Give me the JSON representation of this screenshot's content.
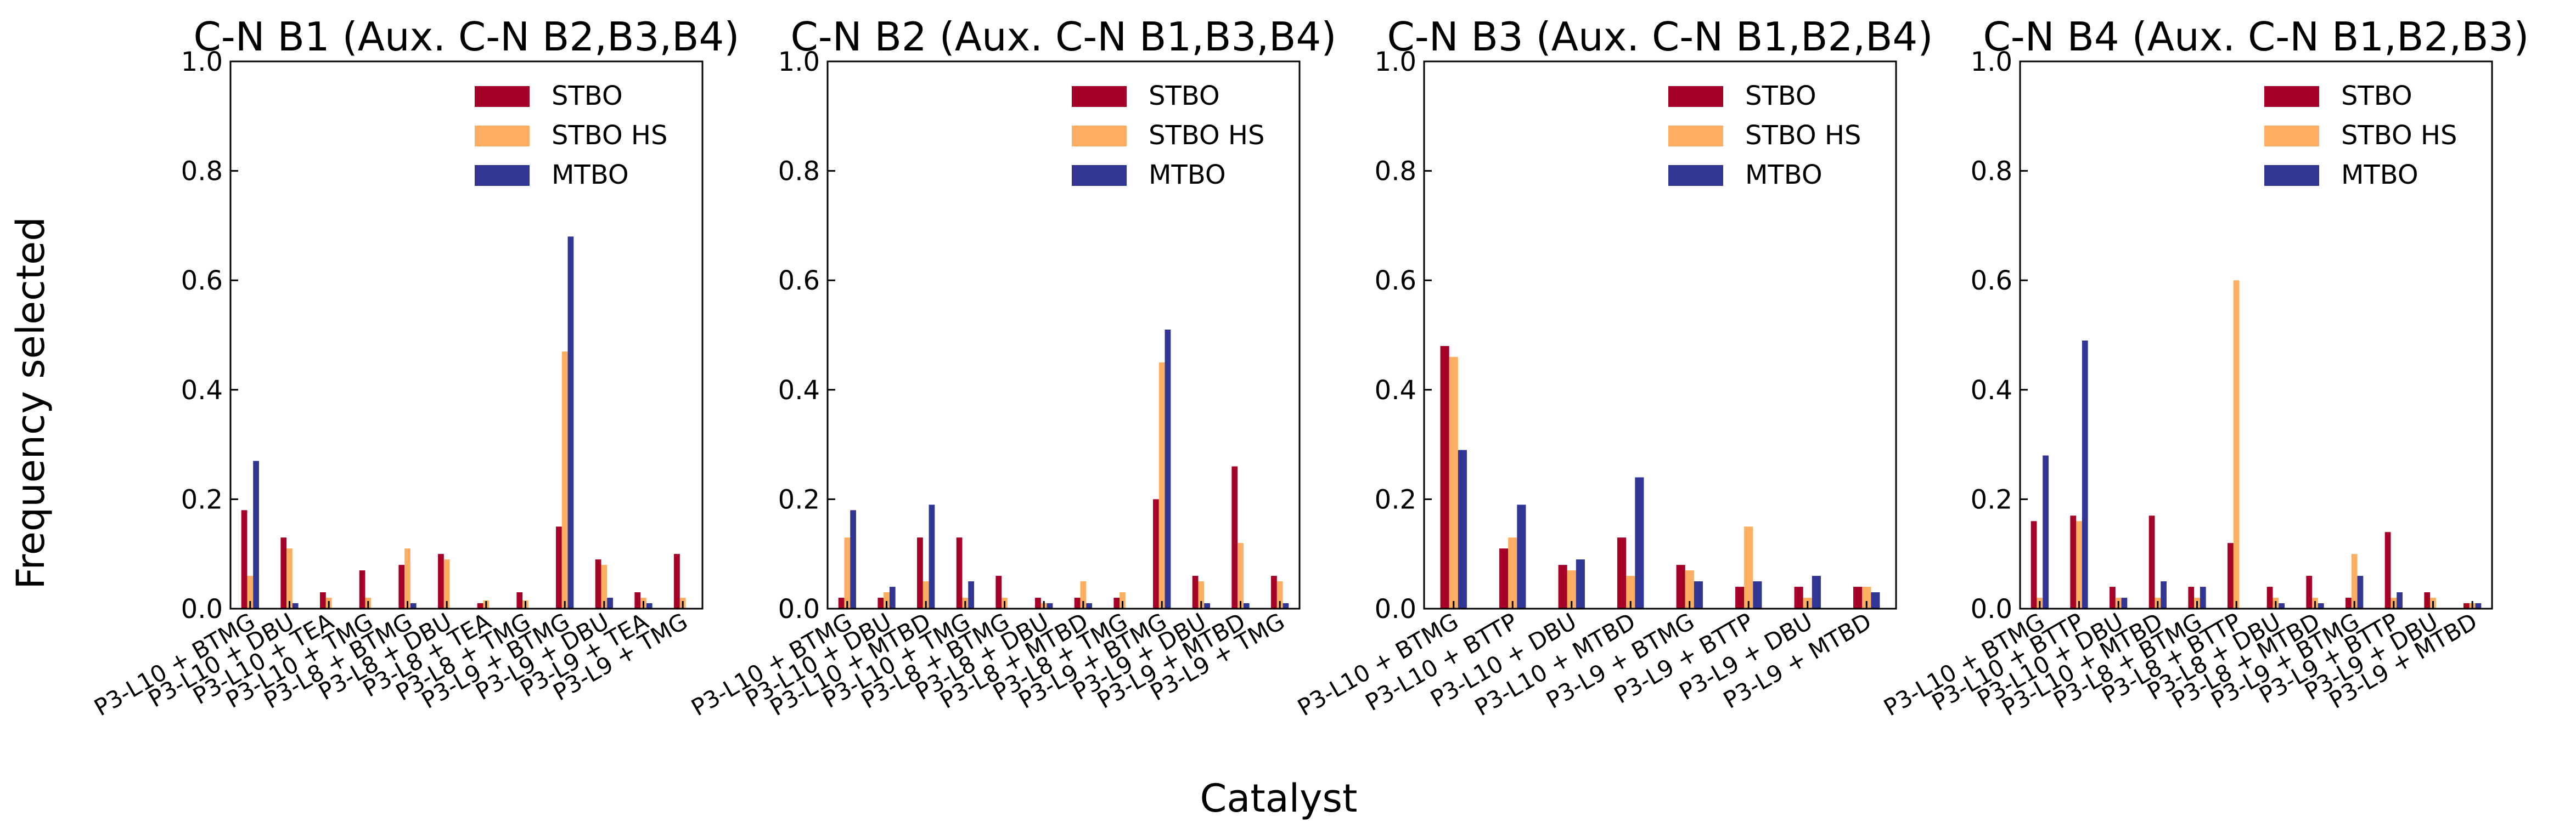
{
  "figure": {
    "ylabel": "Frequency selected",
    "xlabel": "Catalyst"
  },
  "colors": {
    "STBO": "#a50026",
    "STBO HS": "#fdae61",
    "MTBO": "#313695"
  },
  "chart_data": [
    {
      "type": "bar",
      "title": "C-N B1 (Aux. C-N B2,B3,B4)",
      "ylim": [
        0,
        1.0
      ],
      "yticks": [
        "0.0",
        "0.2",
        "0.4",
        "0.6",
        "0.8",
        "1.0"
      ],
      "legend": "upper-right",
      "categories": [
        "P3-L10 + BTMG",
        "P3-L10 + DBU",
        "P3-L10 + TEA",
        "P3-L10 + TMG",
        "P3-L8 + BTMG",
        "P3-L8 + DBU",
        "P3-L8 + TEA",
        "P3-L8 + TMG",
        "P3-L9 + BTMG",
        "P3-L9 + DBU",
        "P3-L9 + TEA",
        "P3-L9 + TMG"
      ],
      "series": [
        {
          "name": "STBO",
          "values": [
            0.18,
            0.13,
            0.03,
            0.07,
            0.08,
            0.1,
            0.01,
            0.03,
            0.15,
            0.09,
            0.03,
            0.1
          ]
        },
        {
          "name": "STBO HS",
          "values": [
            0.06,
            0.11,
            0.02,
            0.02,
            0.11,
            0.09,
            0.015,
            0.015,
            0.47,
            0.08,
            0.02,
            0.02
          ]
        },
        {
          "name": "MTBO",
          "values": [
            0.27,
            0.01,
            0.0,
            0.0,
            0.01,
            0.0,
            0.0,
            0.0,
            0.68,
            0.02,
            0.01,
            0.0
          ]
        }
      ]
    },
    {
      "type": "bar",
      "title": "C-N B2 (Aux. C-N B1,B3,B4)",
      "ylim": [
        0,
        1.0
      ],
      "yticks": [
        "0.0",
        "0.2",
        "0.4",
        "0.6",
        "0.8",
        "1.0"
      ],
      "legend": "upper-right",
      "categories": [
        "P3-L10 + BTMG",
        "P3-L10 + DBU",
        "P3-L10 + MTBD",
        "P3-L10 + TMG",
        "P3-L8 + BTMG",
        "P3-L8 + DBU",
        "P3-L8 + MTBD",
        "P3-L8 + TMG",
        "P3-L9 + BTMG",
        "P3-L9 + DBU",
        "P3-L9 + MTBD",
        "P3-L9 + TMG"
      ],
      "series": [
        {
          "name": "STBO",
          "values": [
            0.02,
            0.02,
            0.13,
            0.13,
            0.06,
            0.02,
            0.02,
            0.02,
            0.2,
            0.06,
            0.26,
            0.06
          ]
        },
        {
          "name": "STBO HS",
          "values": [
            0.13,
            0.03,
            0.05,
            0.02,
            0.02,
            0.01,
            0.05,
            0.03,
            0.45,
            0.05,
            0.12,
            0.05
          ]
        },
        {
          "name": "MTBO",
          "values": [
            0.18,
            0.04,
            0.19,
            0.05,
            0.0,
            0.01,
            0.01,
            0.0,
            0.51,
            0.01,
            0.01,
            0.01
          ]
        }
      ]
    },
    {
      "type": "bar",
      "title": "C-N B3 (Aux. C-N B1,B2,B4)",
      "ylim": [
        0,
        1.0
      ],
      "yticks": [
        "0.0",
        "0.2",
        "0.4",
        "0.6",
        "0.8",
        "1.0"
      ],
      "legend": "upper-right",
      "categories": [
        "P3-L10 + BTMG",
        "P3-L10 + BTTP",
        "P3-L10 + DBU",
        "P3-L10 + MTBD",
        "P3-L9 + BTMG",
        "P3-L9 + BTTP",
        "P3-L9 + DBU",
        "P3-L9 + MTBD"
      ],
      "series": [
        {
          "name": "STBO",
          "values": [
            0.48,
            0.11,
            0.08,
            0.13,
            0.08,
            0.04,
            0.04,
            0.04
          ]
        },
        {
          "name": "STBO HS",
          "values": [
            0.46,
            0.13,
            0.07,
            0.06,
            0.07,
            0.15,
            0.02,
            0.04
          ]
        },
        {
          "name": "MTBO",
          "values": [
            0.29,
            0.19,
            0.09,
            0.24,
            0.05,
            0.05,
            0.06,
            0.03
          ]
        }
      ]
    },
    {
      "type": "bar",
      "title": "C-N B4 (Aux. C-N B1,B2,B3)",
      "ylim": [
        0,
        1.0
      ],
      "yticks": [
        "0.0",
        "0.2",
        "0.4",
        "0.6",
        "0.8",
        "1.0"
      ],
      "legend": "upper-right",
      "categories": [
        "P3-L10 + BTMG",
        "P3-L10 + BTTP",
        "P3-L10 + DBU",
        "P3-L10 + MTBD",
        "P3-L8 + BTMG",
        "P3-L8 + BTTP",
        "P3-L8 + DBU",
        "P3-L8 + MTBD",
        "P3-L9 + BTMG",
        "P3-L9 + BTTP",
        "P3-L9 + DBU",
        "P3-L9 + MTBD"
      ],
      "series": [
        {
          "name": "STBO",
          "values": [
            0.16,
            0.17,
            0.04,
            0.17,
            0.04,
            0.12,
            0.04,
            0.06,
            0.02,
            0.14,
            0.03,
            0.01
          ]
        },
        {
          "name": "STBO HS",
          "values": [
            0.02,
            0.16,
            0.02,
            0.02,
            0.02,
            0.6,
            0.02,
            0.02,
            0.1,
            0.02,
            0.02,
            0.01
          ]
        },
        {
          "name": "MTBO",
          "values": [
            0.28,
            0.49,
            0.02,
            0.05,
            0.04,
            0.0,
            0.01,
            0.01,
            0.06,
            0.03,
            0.0,
            0.01
          ]
        }
      ]
    }
  ]
}
